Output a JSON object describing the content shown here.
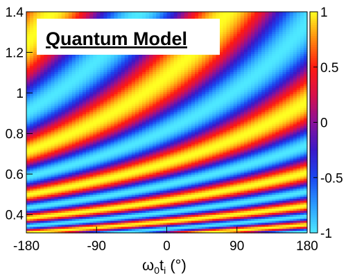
{
  "chart_data": {
    "type": "heatmap",
    "title": "Quantum Model",
    "x_label_main": "ω",
    "x_label_sub1": "0",
    "x_label_t": "t",
    "x_label_sub2": "i",
    "x_label_unit": " (°)",
    "xlim": [
      -180,
      180
    ],
    "ylim": [
      0.31,
      1.4
    ],
    "zlim": [
      -1,
      1
    ],
    "x_ticks": [
      -180,
      -90,
      0,
      90,
      180
    ],
    "x_tick_labels": [
      "-180",
      "-90",
      "0",
      "90",
      "180"
    ],
    "y_ticks": [
      0.4,
      0.6,
      0.8,
      1.0,
      1.2,
      1.4
    ],
    "y_tick_labels": [
      "0.4",
      "0.6",
      "0.8",
      "1",
      "1.2",
      "1.4"
    ],
    "z_ticks": [
      -1,
      -0.5,
      0,
      0.5,
      1
    ],
    "z_tick_labels": [
      "-1",
      "-0.5",
      "0",
      "0.5",
      "1"
    ],
    "colorscale": [
      {
        "v": -1.0,
        "color": "#4ee8ff"
      },
      {
        "v": -0.75,
        "color": "#2a9cff"
      },
      {
        "v": -0.5,
        "color": "#1a46f0"
      },
      {
        "v": -0.25,
        "color": "#3a18c8"
      },
      {
        "v": 0.0,
        "color": "#8a1299"
      },
      {
        "v": 0.25,
        "color": "#d8104a"
      },
      {
        "v": 0.5,
        "color": "#ff1a10"
      },
      {
        "v": 0.75,
        "color": "#ff8a10"
      },
      {
        "v": 1.0,
        "color": "#ffff22"
      }
    ],
    "grid": false,
    "legend": "colorbar-right"
  }
}
